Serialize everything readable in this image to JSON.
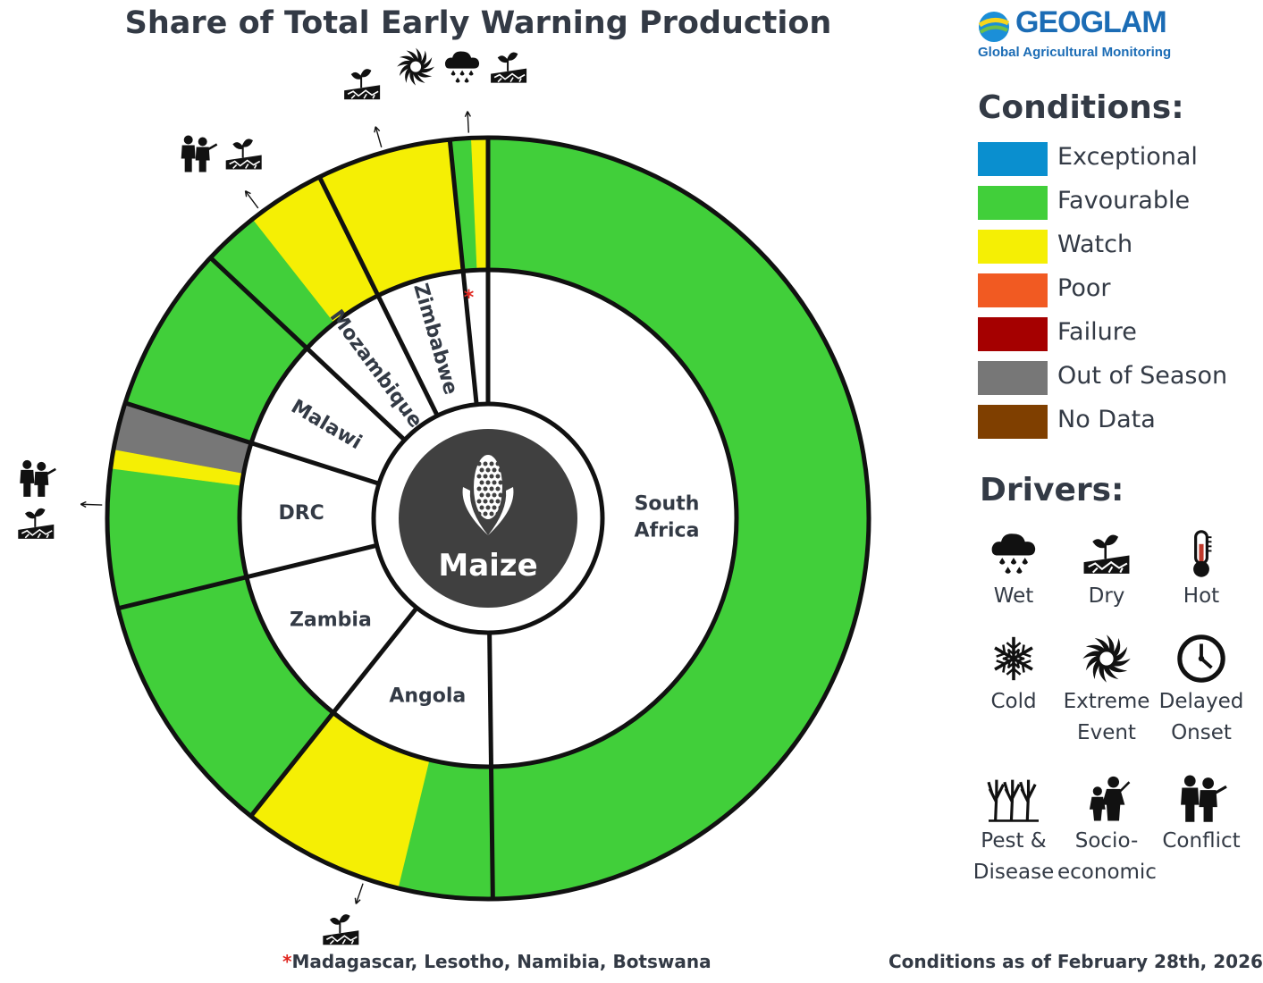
{
  "chart_data": {
    "type": "donut",
    "title": "Share of Total Early Warning Production",
    "center_label": "Maize",
    "center_icon": "maize-icon",
    "colors": {
      "Exceptional": "#0a8fcf",
      "Favourable": "#41cf3a",
      "Watch": "#f5ef04",
      "Poor": "#f15a22",
      "Failure": "#a50000",
      "Out of Season": "#777777",
      "No Data": "#7f3f00"
    },
    "countries": [
      {
        "name": "South Africa",
        "share": 49.8,
        "conditions": [
          {
            "condition": "Favourable",
            "share": 49.8
          }
        ],
        "drivers": []
      },
      {
        "name": "Angola",
        "share": 10.9,
        "conditions": [
          {
            "condition": "Favourable",
            "share": 4.0
          },
          {
            "condition": "Watch",
            "share": 6.9
          }
        ],
        "drivers": [
          "dry-icon"
        ]
      },
      {
        "name": "Zambia",
        "share": 10.5,
        "conditions": [
          {
            "condition": "Favourable",
            "share": 10.5
          }
        ],
        "drivers": []
      },
      {
        "name": "DRC",
        "share": 8.7,
        "conditions": [
          {
            "condition": "Favourable",
            "share": 5.9
          },
          {
            "condition": "Watch",
            "share": 0.8
          },
          {
            "condition": "Out of Season",
            "share": 2.0
          }
        ],
        "drivers": [
          "conflict-icon",
          "dry-icon"
        ]
      },
      {
        "name": "Malawi",
        "share": 7.1,
        "conditions": [
          {
            "condition": "Favourable",
            "share": 7.1
          }
        ],
        "drivers": []
      },
      {
        "name": "Mozambique",
        "share": 5.7,
        "conditions": [
          {
            "condition": "Favourable",
            "share": 2.4
          },
          {
            "condition": "Watch",
            "share": 3.3
          }
        ],
        "drivers": [
          "conflict-icon",
          "dry-icon"
        ]
      },
      {
        "name": "Zimbabwe",
        "share": 5.7,
        "conditions": [
          {
            "condition": "Watch",
            "share": 5.7
          }
        ],
        "drivers": [
          "dry-icon"
        ]
      },
      {
        "name": "*",
        "share": 1.6,
        "conditions": [
          {
            "condition": "Favourable",
            "share": 0.9
          },
          {
            "condition": "Watch",
            "share": 0.7
          }
        ],
        "drivers": [
          "extreme-event-icon",
          "wet-icon",
          "dry-icon"
        ]
      }
    ]
  },
  "logo": {
    "name": "GEOGLAM",
    "subtitle": "Global Agricultural Monitoring"
  },
  "legend": {
    "conditions_title": "Conditions:",
    "conditions": [
      {
        "label": "Exceptional",
        "color": "#0a8fcf"
      },
      {
        "label": "Favourable",
        "color": "#41cf3a"
      },
      {
        "label": "Watch",
        "color": "#f5ef04"
      },
      {
        "label": "Poor",
        "color": "#f15a22"
      },
      {
        "label": "Failure",
        "color": "#a50000"
      },
      {
        "label": "Out of Season",
        "color": "#777777"
      },
      {
        "label": "No Data",
        "color": "#7f3f00"
      }
    ],
    "drivers_title": "Drivers:",
    "drivers": [
      {
        "icon": "wet-icon",
        "label": "Wet"
      },
      {
        "icon": "dry-icon",
        "label": "Dry"
      },
      {
        "icon": "hot-icon",
        "label": "Hot"
      },
      {
        "icon": "cold-icon",
        "label": "Cold"
      },
      {
        "icon": "extreme-event-icon",
        "label": "Extreme Event"
      },
      {
        "icon": "delayed-onset-icon",
        "label": "Delayed Onset"
      },
      {
        "icon": "pest-disease-icon",
        "label": "Pest & Disease"
      },
      {
        "icon": "socio-economic-icon",
        "label": "Socio-economic"
      },
      {
        "icon": "conflict-icon",
        "label": "Conflict"
      }
    ]
  },
  "footnote": {
    "marker": "*",
    "text": "Madagascar, Lesotho, Namibia, Botswana"
  },
  "conditions_date": "Conditions as of February 28th, 2026"
}
